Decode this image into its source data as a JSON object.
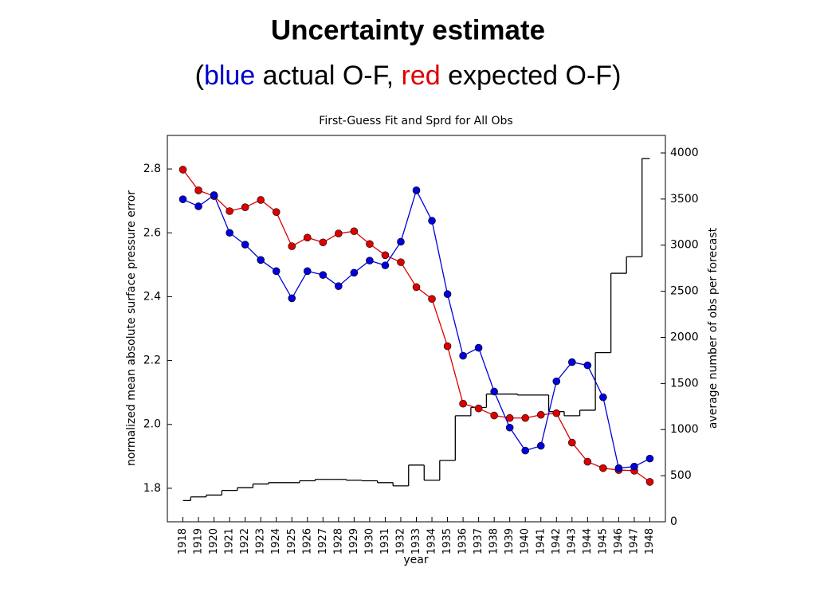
{
  "slide_title": "Uncertainty estimate",
  "slide_subtitle": [
    {
      "text": "(",
      "color": "#000000"
    },
    {
      "text": "blue",
      "color": "#0000cc"
    },
    {
      "text": " actual O-F, ",
      "color": "#000000"
    },
    {
      "text": "red",
      "color": "#dd0000"
    },
    {
      "text": " expected O-F)",
      "color": "#000000"
    }
  ],
  "chart_data": {
    "type": "line",
    "title": "First-Guess Fit and Sprd for All Obs",
    "xlabel": "year",
    "ylabel": "normalized mean absolute surface pressure error",
    "y2label": "average number of obs per forecast",
    "x": [
      1918,
      1919,
      1920,
      1921,
      1922,
      1923,
      1924,
      1925,
      1926,
      1927,
      1928,
      1929,
      1930,
      1931,
      1932,
      1933,
      1934,
      1935,
      1936,
      1937,
      1938,
      1939,
      1940,
      1941,
      1942,
      1943,
      1944,
      1945,
      1946,
      1947,
      1948
    ],
    "xlim": [
      1917,
      1949
    ],
    "xticks": [
      1918,
      1919,
      1920,
      1921,
      1922,
      1923,
      1924,
      1925,
      1926,
      1927,
      1928,
      1929,
      1930,
      1931,
      1932,
      1933,
      1934,
      1935,
      1936,
      1937,
      1938,
      1939,
      1940,
      1941,
      1942,
      1943,
      1944,
      1945,
      1946,
      1947,
      1948
    ],
    "ylim": [
      1.695,
      2.905
    ],
    "yticks": [
      1.8,
      {
        "value": 2,
        "label": "2.0"
      },
      2.2,
      2.4,
      2.6,
      2.8
    ],
    "y2lim": [
      0,
      4190
    ],
    "y2ticks": [
      0,
      500,
      1000,
      1500,
      2000,
      2500,
      3000,
      3500,
      4000
    ],
    "series": [
      {
        "name": "actual O-F",
        "color": "#0000dd",
        "marker": true,
        "values": [
          2.705,
          2.683,
          2.718,
          2.6,
          2.563,
          2.515,
          2.48,
          2.395,
          2.48,
          2.468,
          2.433,
          2.475,
          2.513,
          2.498,
          2.572,
          2.733,
          2.638,
          2.408,
          2.215,
          2.24,
          2.103,
          1.99,
          1.918,
          1.933,
          2.135,
          2.195,
          2.185,
          2.085,
          1.863,
          1.868,
          1.893
        ]
      },
      {
        "name": "expected O-F",
        "color": "#dd0000",
        "marker": true,
        "values": [
          2.798,
          2.733,
          2.715,
          2.668,
          2.68,
          2.703,
          2.665,
          2.558,
          2.585,
          2.57,
          2.598,
          2.605,
          2.565,
          2.53,
          2.508,
          2.43,
          2.393,
          2.245,
          2.065,
          2.05,
          2.028,
          2.02,
          2.02,
          2.03,
          2.035,
          1.943,
          1.883,
          1.863,
          1.857,
          1.855,
          1.82
        ]
      },
      {
        "name": "obs per forecast",
        "color": "#000000",
        "axis": "y2",
        "step": "mid",
        "values": [
          230,
          270,
          290,
          340,
          370,
          410,
          425,
          425,
          445,
          460,
          460,
          450,
          445,
          425,
          390,
          615,
          450,
          665,
          1150,
          1240,
          1385,
          1385,
          1375,
          1375,
          1195,
          1150,
          1210,
          1835,
          2695,
          2875,
          3940
        ]
      }
    ]
  }
}
